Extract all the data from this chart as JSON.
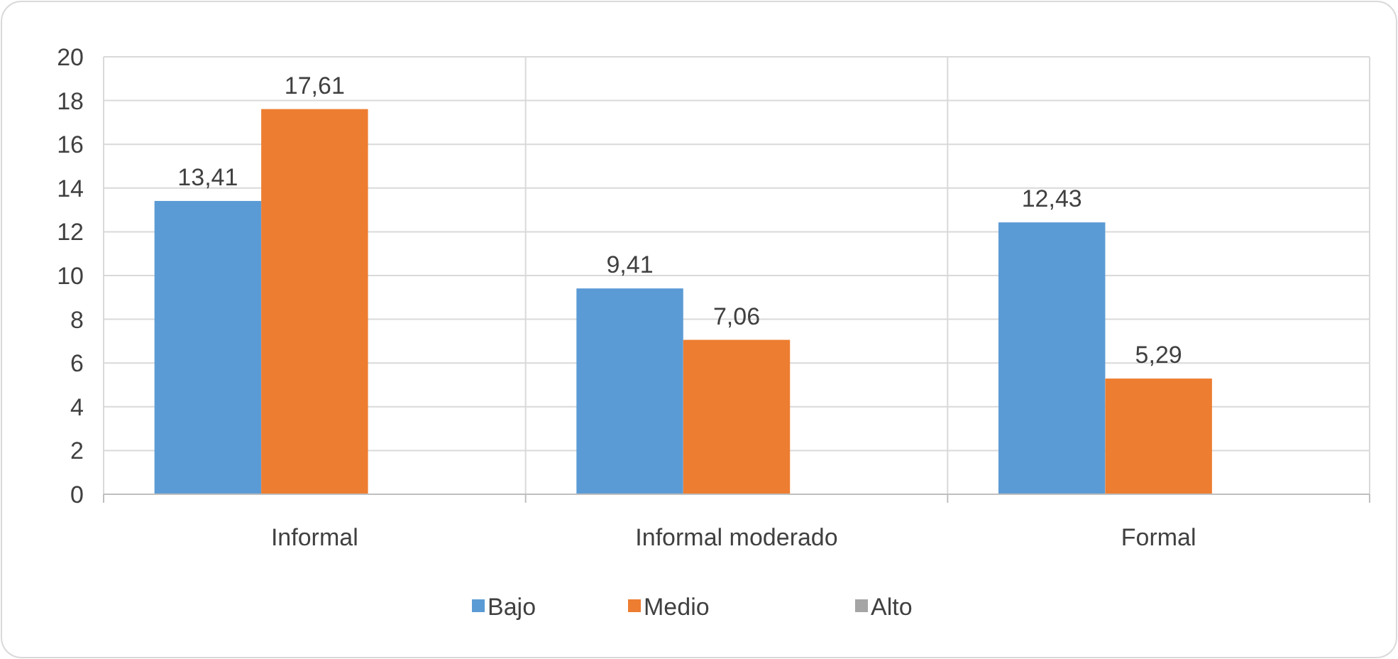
{
  "chart_data": {
    "type": "bar",
    "categories": [
      "Informal",
      "Informal moderado",
      "Formal"
    ],
    "series": [
      {
        "name": "Bajo",
        "color": "#5b9bd5",
        "values": [
          13.41,
          9.41,
          12.43
        ],
        "value_labels": [
          "13,41",
          "9,41",
          "12,43"
        ]
      },
      {
        "name": "Medio",
        "color": "#ed7d31",
        "values": [
          17.61,
          7.06,
          5.29
        ],
        "value_labels": [
          "17,61",
          "7,06",
          "5,29"
        ]
      },
      {
        "name": "Alto",
        "color": "#a5a5a5",
        "values": [
          null,
          null,
          null
        ],
        "value_labels": [
          null,
          null,
          null
        ]
      }
    ],
    "ylim": [
      0,
      20
    ],
    "yticks": [
      0,
      2,
      4,
      6,
      8,
      10,
      12,
      14,
      16,
      18,
      20
    ],
    "grid": true,
    "legend": "bottom"
  }
}
